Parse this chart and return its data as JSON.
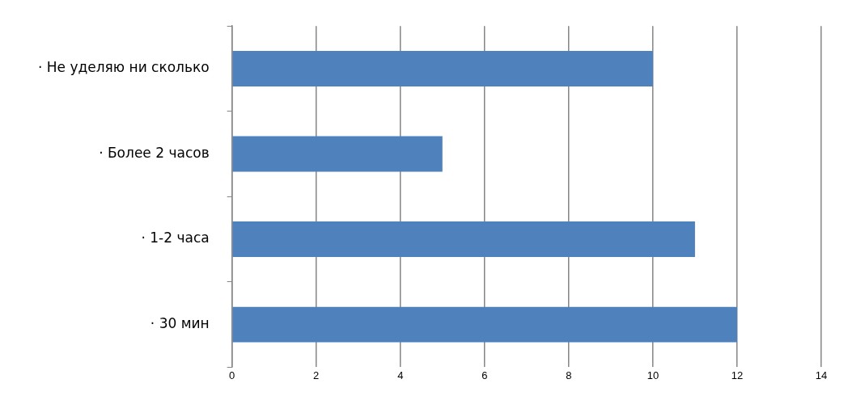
{
  "chart_data": {
    "type": "bar",
    "orientation": "horizontal",
    "categories": [
      "· Не уделяю ни сколько",
      "· Более 2 часов",
      "· 1-2 часа",
      "· 30 мин"
    ],
    "values": [
      10,
      5,
      11,
      12
    ],
    "color": "#4f81bd",
    "xlim": [
      0,
      14
    ],
    "xticks": [
      0,
      2,
      4,
      6,
      8,
      10,
      12,
      14
    ],
    "grid": "x",
    "legend": false
  }
}
